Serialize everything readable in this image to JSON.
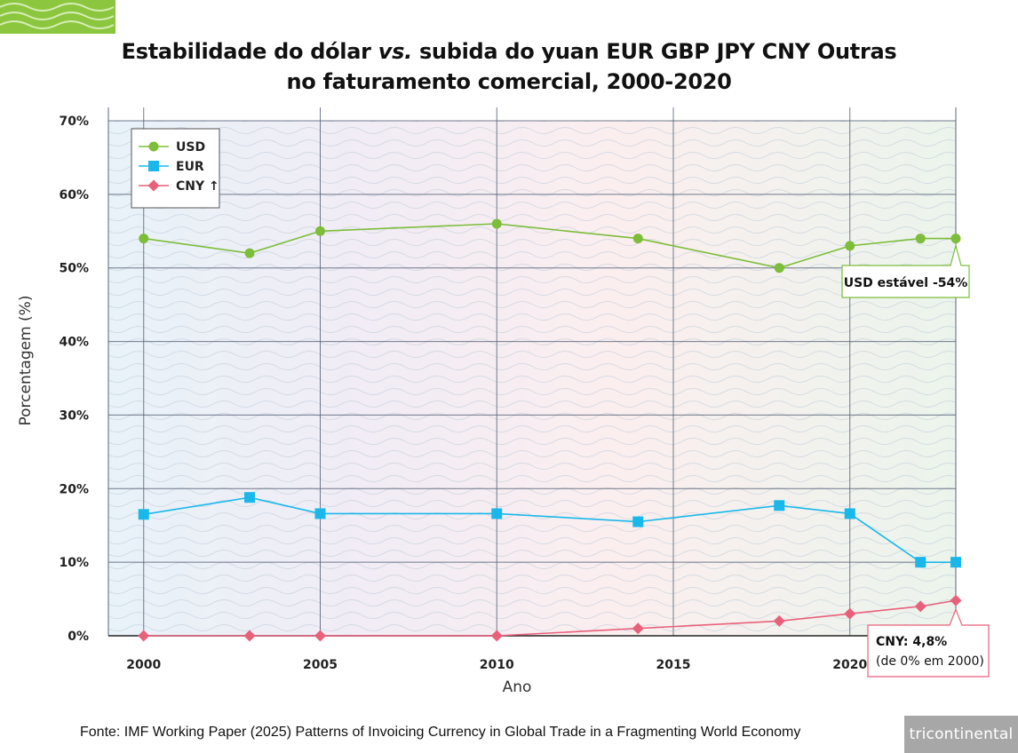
{
  "title": {
    "line1_a": "Estabilidade do dólar ",
    "line1_vs": "vs.",
    "line1_b": " subida do yuan EUR GBP JPY CNY Outras",
    "line2": "no faturamento comercial, 2000-2020"
  },
  "source": "Fonte: IMF Working Paper (2025) Patterns of Invoicing Currency in Global Trade in a Fragmenting World Economy",
  "logo_text": "tricontinental",
  "colors": {
    "usd": "#7cbd3a",
    "eur": "#1ab8ea",
    "cny": "#e8617a",
    "grid": "#5a6478"
  },
  "chart_data": {
    "type": "line",
    "xlabel": "Ano",
    "ylabel": "Porcentagem (%)",
    "xlim": [
      1999,
      2023
    ],
    "ylim": [
      0,
      70
    ],
    "x_ticks": [
      2000,
      2005,
      2010,
      2015,
      2020
    ],
    "y_ticks": [
      0,
      10,
      20,
      30,
      40,
      50,
      60,
      70
    ],
    "y_tick_labels": [
      "0%",
      "10%",
      "20%",
      "30%",
      "40%",
      "50%",
      "60%",
      "70%"
    ],
    "grid": true,
    "legend_position": "top-left",
    "series": [
      {
        "name": "USD",
        "marker": "circle",
        "color": "#7cbd3a",
        "x": [
          2000,
          2003,
          2005,
          2010,
          2014,
          2018,
          2020,
          2022,
          2023
        ],
        "values": [
          54,
          52,
          55,
          56,
          54,
          50,
          53,
          54,
          54
        ]
      },
      {
        "name": "EUR",
        "marker": "square",
        "color": "#1ab8ea",
        "x": [
          2000,
          2003,
          2005,
          2010,
          2014,
          2018,
          2020,
          2022,
          2023
        ],
        "values": [
          16.5,
          18.8,
          16.6,
          16.6,
          15.5,
          17.7,
          16.6,
          10,
          10
        ]
      },
      {
        "name": "CNY ↑",
        "marker": "diamond",
        "color": "#e8617a",
        "x": [
          2000,
          2003,
          2005,
          2010,
          2014,
          2018,
          2020,
          2022,
          2023
        ],
        "values": [
          0,
          0,
          0,
          0,
          1,
          2,
          3,
          4,
          4.8
        ]
      }
    ],
    "annotations": [
      {
        "series": "USD",
        "x": 2023,
        "value": 54,
        "lines": [
          "USD estável -54%"
        ]
      },
      {
        "series": "CNY ↑",
        "x": 2023,
        "value": 4.8,
        "lines": [
          "CNY: 4,8%",
          "(de 0% em 2000)"
        ]
      }
    ]
  }
}
